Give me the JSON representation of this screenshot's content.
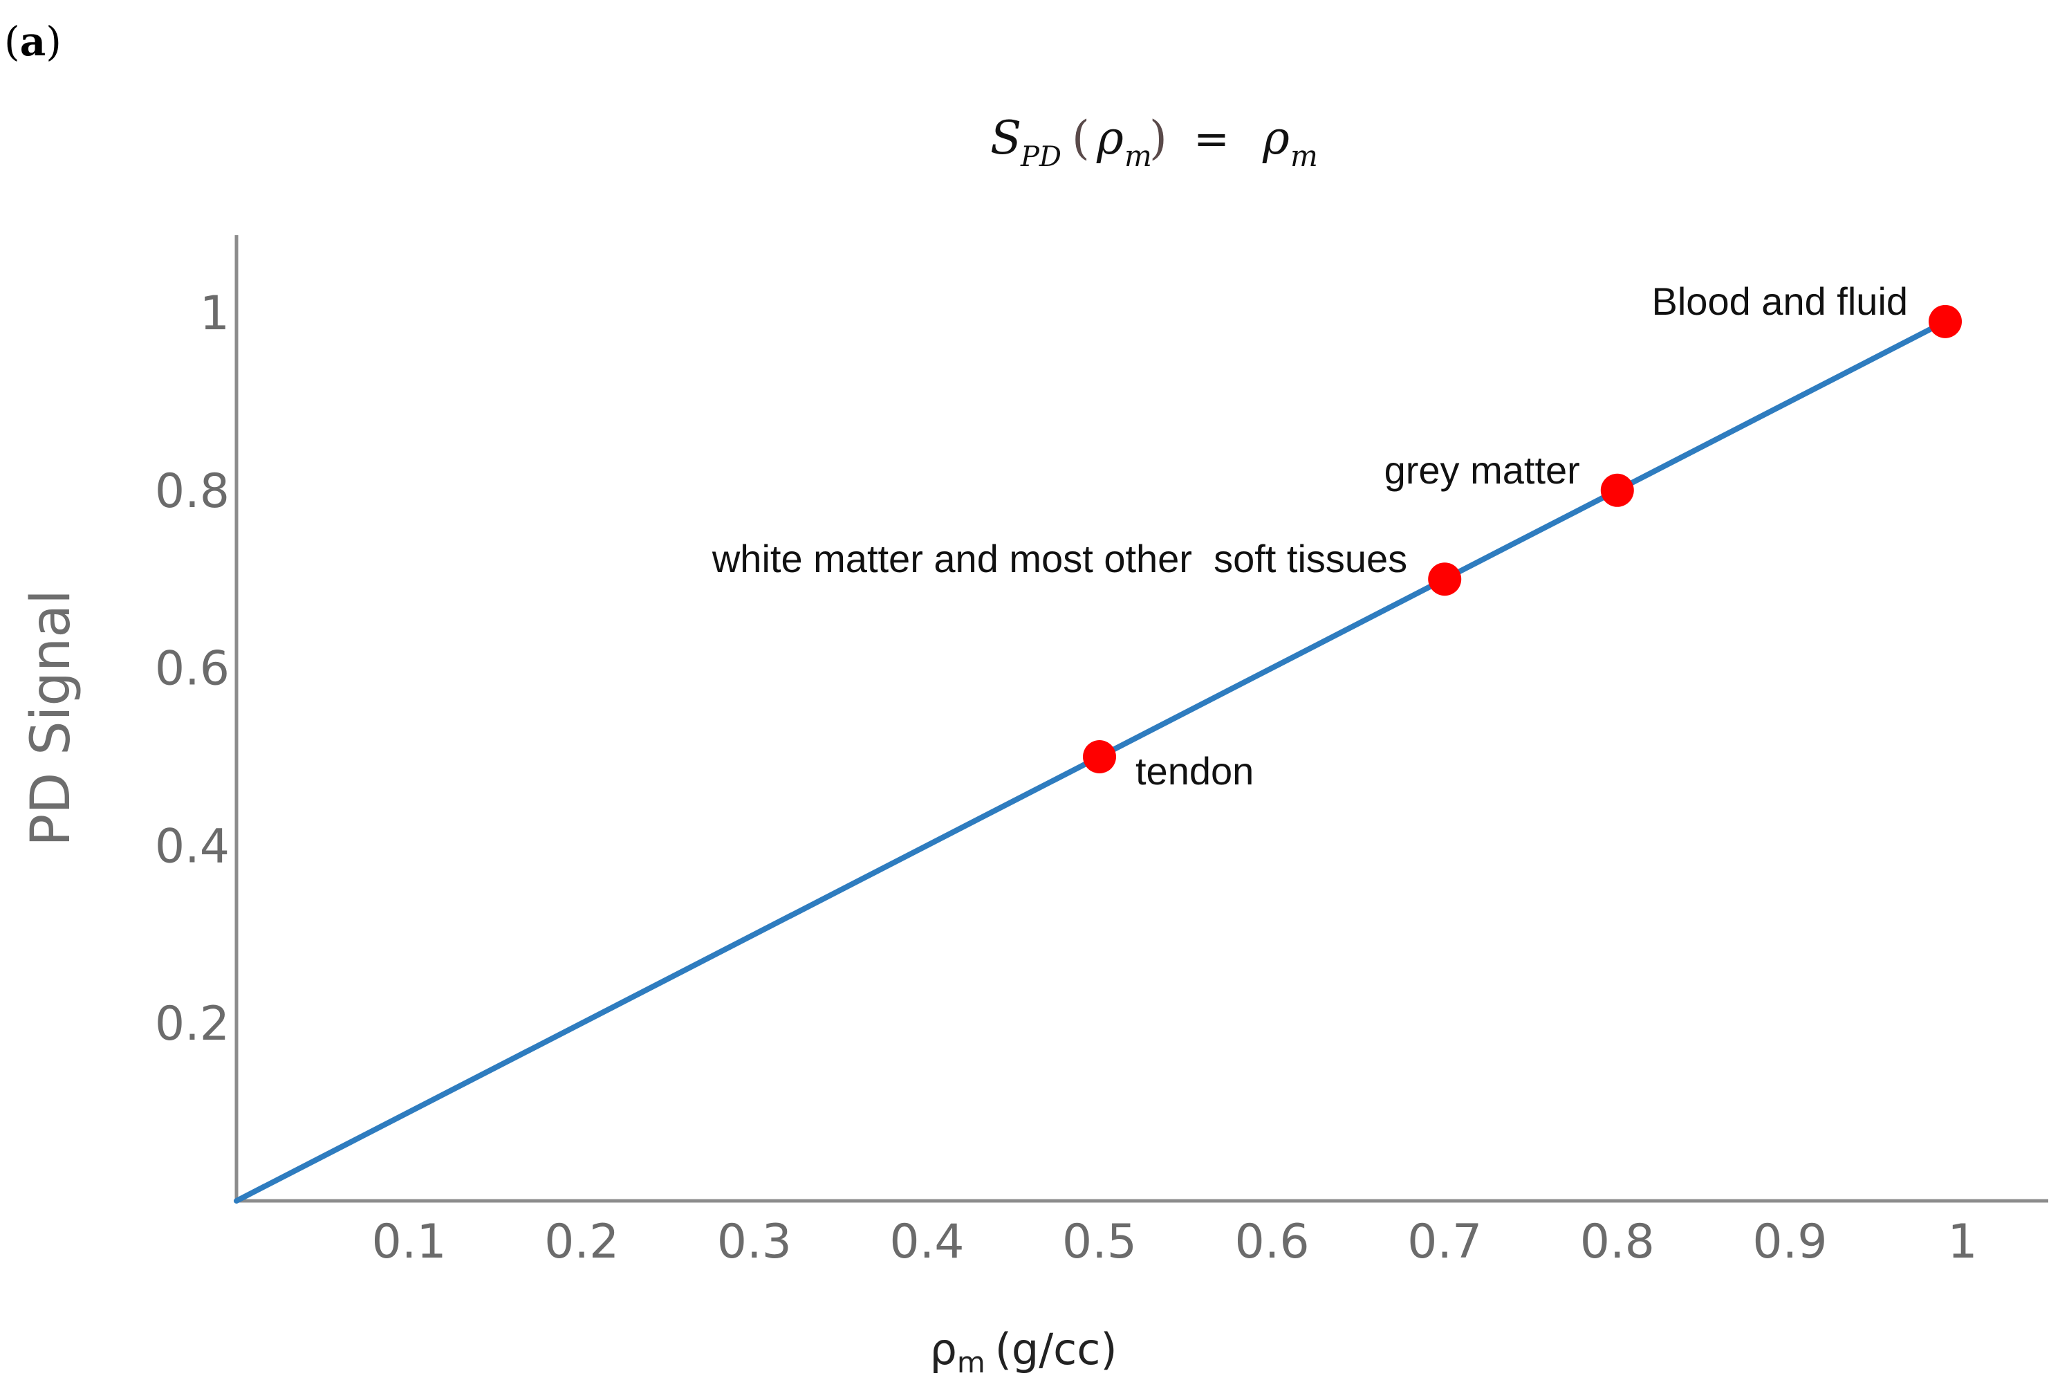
{
  "panel_label": {
    "open": "(",
    "letter": "a",
    "close": ")"
  },
  "formula": {
    "lhs_symbol": "S",
    "lhs_subscript": "PD",
    "paren_open": "(",
    "argument_symbol": "ρ",
    "argument_subscript": "m",
    "paren_close": ")",
    "equals": "=",
    "rhs_symbol": "ρ",
    "rhs_subscript": "m"
  },
  "colors": {
    "line": "#2e7cbf",
    "point": "#ff0000",
    "axis": "#8c8c8c"
  },
  "chart_data": {
    "type": "line",
    "title": "S_PD(ρm) = ρm",
    "xlabel": "ρm (g/cc)",
    "xlabel_main": "ρ",
    "xlabel_subscript": "m",
    "xlabel_units": "(g/cc)",
    "ylabel": "PD Signal",
    "xlim": [
      0,
      1.05
    ],
    "ylim": [
      0,
      1.1
    ],
    "x_ticks": [
      0.1,
      0.2,
      0.3,
      0.4,
      0.5,
      0.6,
      0.7,
      0.8,
      0.9,
      1
    ],
    "x_tick_labels": [
      "0.1",
      "0.2",
      "0.3",
      "0.4",
      "0.5",
      "0.6",
      "0.7",
      "0.8",
      "0.9",
      "1"
    ],
    "y_ticks": [
      0.2,
      0.4,
      0.6,
      0.8,
      1
    ],
    "y_tick_labels": [
      "0.2",
      "0.4",
      "0.6",
      "0.8",
      "1"
    ],
    "grid": false,
    "series": [
      {
        "name": "S_PD = ρm",
        "x": [
          0,
          0.99
        ],
        "y": [
          0,
          0.99
        ]
      }
    ],
    "points": [
      {
        "x": 0.5,
        "y": 0.5,
        "label": "tendon",
        "label_side": "below-right"
      },
      {
        "x": 0.7,
        "y": 0.7,
        "label": "white matter and most other  soft tissues",
        "label_side": "left"
      },
      {
        "x": 0.8,
        "y": 0.8,
        "label": "grey matter",
        "label_side": "left"
      },
      {
        "x": 0.99,
        "y": 0.99,
        "label": "Blood and fluid",
        "label_side": "left"
      }
    ]
  }
}
